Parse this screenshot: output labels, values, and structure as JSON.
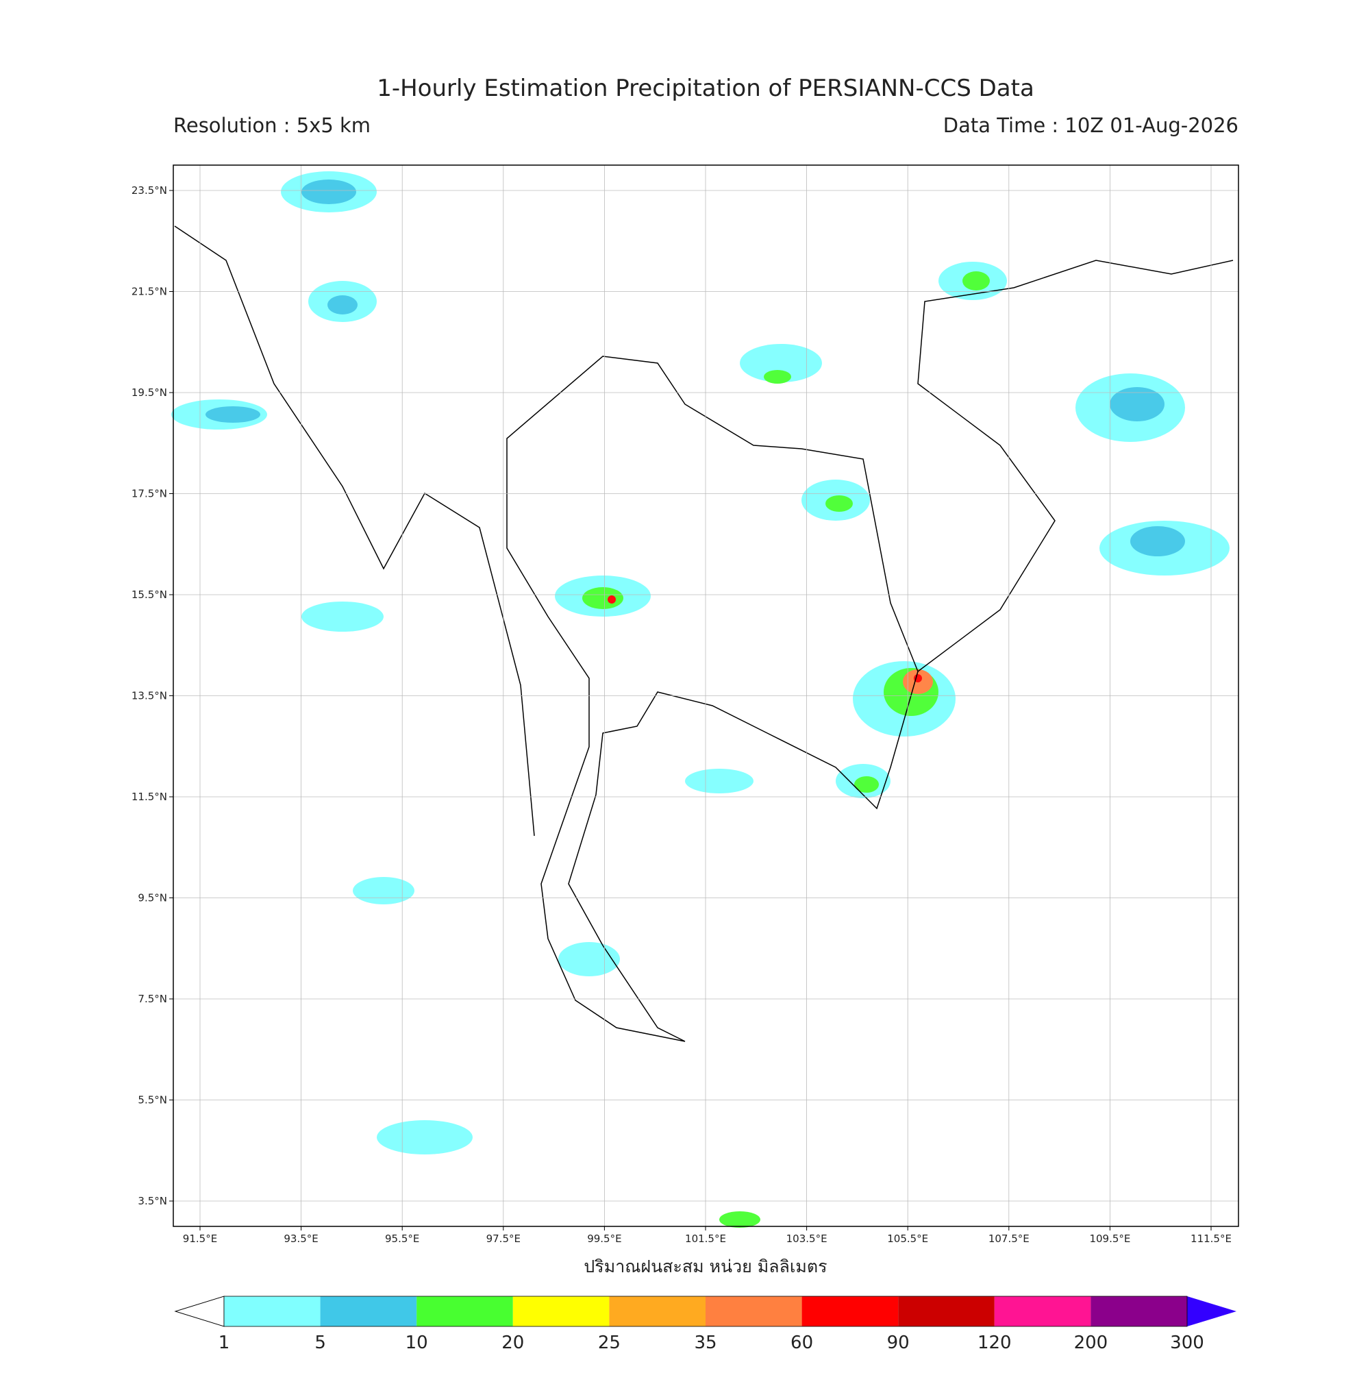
{
  "header": {
    "title": "1-Hourly Estimation Precipitation of PERSIANN-CCS Data",
    "resolution": "Resolution : 5x5 km",
    "data_time": "Data Time : 10Z 01-Aug-2026"
  },
  "map": {
    "lon_ticks": [
      "91.5°E",
      "93.5°E",
      "95.5°E",
      "97.5°E",
      "99.5°E",
      "101.5°E",
      "103.5°E",
      "105.5°E",
      "107.5°E",
      "109.5°E",
      "111.5°E"
    ],
    "lat_ticks": [
      "3.5°N",
      "5.5°N",
      "7.5°N",
      "9.5°N",
      "11.5°N",
      "13.5°N",
      "15.5°N",
      "17.5°N",
      "19.5°N",
      "21.5°N",
      "23.5°N"
    ],
    "axis_label": "ปริมาณฝนสะสม หน่วย มิลลิเมตร"
  },
  "colorbar": {
    "bounds": [
      1,
      5,
      10,
      20,
      25,
      35,
      60,
      90,
      120,
      200,
      300
    ],
    "colors": [
      "#80ffff",
      "#40c8e8",
      "#48ff30",
      "#ffff00",
      "#ffaa20",
      "#ff8040",
      "#ff0000",
      "#cc0000",
      "#ff1493",
      "#8b008b"
    ],
    "over_color": "#3300ff"
  }
}
